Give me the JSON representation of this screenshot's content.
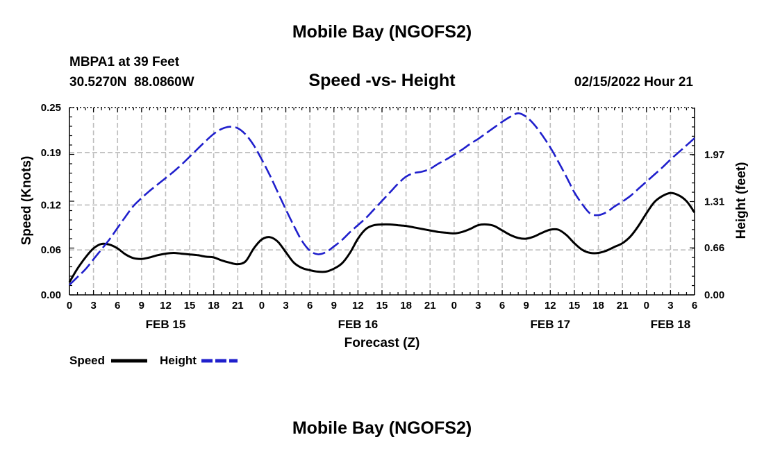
{
  "page": {
    "title": "Mobile Bay (NGOFS2)",
    "footer_title": "Mobile Bay (NGOFS2)"
  },
  "chart_data": {
    "type": "line",
    "title": "Speed -vs- Height",
    "station": "MBPA1 at 39 Feet",
    "location": "30.5270N  88.0860W",
    "timestamp": "02/15/2022 Hour 21",
    "xlabel": "Forecast (Z)",
    "ylabel_left": "Speed (Knots)",
    "ylabel_right": "Height (feet)",
    "x_unit": "hours from FEB 15 00Z",
    "xlim": [
      0,
      78
    ],
    "x_ticks": [
      0,
      3,
      6,
      9,
      12,
      15,
      18,
      21,
      24,
      27,
      30,
      33,
      36,
      39,
      42,
      45,
      48,
      51,
      54,
      57,
      60,
      63,
      66,
      69,
      72,
      75,
      78
    ],
    "x_tick_labels": [
      "0",
      "3",
      "6",
      "9",
      "12",
      "15",
      "18",
      "21",
      "0",
      "3",
      "6",
      "9",
      "12",
      "15",
      "18",
      "21",
      "0",
      "3",
      "6",
      "9",
      "12",
      "15",
      "18",
      "21",
      "0",
      "3",
      "6"
    ],
    "date_labels": [
      {
        "x": 12,
        "text": "FEB 15"
      },
      {
        "x": 36,
        "text": "FEB 16"
      },
      {
        "x": 60,
        "text": "FEB 17"
      },
      {
        "x": 75,
        "text": "FEB 18"
      }
    ],
    "ylim_left": [
      0,
      0.25
    ],
    "yticks_left": [
      "0.00",
      "0.06",
      "0.12",
      "0.19",
      "0.25"
    ],
    "ylim_right": [
      0,
      2.63
    ],
    "yticks_right": [
      "0.00",
      "0.66",
      "1.31",
      "1.97"
    ],
    "grid": true,
    "legend_position": "bottom-left",
    "series": [
      {
        "name": "Speed",
        "axis": "left",
        "color": "#000000",
        "style": "solid",
        "x": [
          0,
          1,
          2,
          3,
          4,
          5,
          6,
          7,
          8,
          9,
          10,
          11,
          12,
          13,
          14,
          15,
          16,
          17,
          18,
          19,
          20,
          21,
          22,
          23,
          24,
          25,
          26,
          27,
          28,
          29,
          30,
          31,
          32,
          33,
          34,
          35,
          36,
          37,
          38,
          39,
          40,
          41,
          42,
          43,
          44,
          45,
          46,
          47,
          48,
          49,
          50,
          51,
          52,
          53,
          54,
          55,
          56,
          57,
          58,
          59,
          60,
          61,
          62,
          63,
          64,
          65,
          66,
          67,
          68,
          69,
          70,
          71,
          72,
          73,
          74,
          75,
          76,
          77,
          78
        ],
        "values": [
          0.017,
          0.035,
          0.05,
          0.062,
          0.068,
          0.067,
          0.062,
          0.054,
          0.049,
          0.048,
          0.05,
          0.053,
          0.055,
          0.056,
          0.055,
          0.054,
          0.053,
          0.051,
          0.05,
          0.046,
          0.043,
          0.041,
          0.045,
          0.062,
          0.074,
          0.077,
          0.071,
          0.057,
          0.043,
          0.036,
          0.033,
          0.031,
          0.031,
          0.035,
          0.042,
          0.056,
          0.075,
          0.088,
          0.093,
          0.094,
          0.094,
          0.093,
          0.092,
          0.09,
          0.088,
          0.086,
          0.084,
          0.083,
          0.082,
          0.084,
          0.088,
          0.093,
          0.094,
          0.092,
          0.086,
          0.08,
          0.076,
          0.075,
          0.078,
          0.083,
          0.087,
          0.087,
          0.08,
          0.069,
          0.06,
          0.056,
          0.056,
          0.059,
          0.064,
          0.069,
          0.078,
          0.092,
          0.109,
          0.124,
          0.132,
          0.136,
          0.133,
          0.125,
          0.11
        ]
      },
      {
        "name": "Height",
        "axis": "right",
        "color": "#1f1fcc",
        "style": "dashed",
        "x": [
          0,
          1,
          2,
          3,
          4,
          5,
          6,
          7,
          8,
          9,
          10,
          11,
          12,
          13,
          14,
          15,
          16,
          17,
          18,
          19,
          20,
          21,
          22,
          23,
          24,
          25,
          26,
          27,
          28,
          29,
          30,
          31,
          32,
          33,
          34,
          35,
          36,
          37,
          38,
          39,
          40,
          41,
          42,
          43,
          44,
          45,
          46,
          47,
          48,
          49,
          50,
          51,
          52,
          53,
          54,
          55,
          56,
          57,
          58,
          59,
          60,
          61,
          62,
          63,
          64,
          65,
          66,
          67,
          68,
          69,
          70,
          71,
          72,
          73,
          74,
          75,
          76,
          77,
          78
        ],
        "values": [
          0.14,
          0.25,
          0.36,
          0.5,
          0.64,
          0.78,
          0.94,
          1.1,
          1.25,
          1.36,
          1.46,
          1.55,
          1.64,
          1.73,
          1.83,
          1.94,
          2.05,
          2.16,
          2.26,
          2.33,
          2.36,
          2.34,
          2.25,
          2.1,
          1.9,
          1.68,
          1.44,
          1.2,
          0.97,
          0.76,
          0.62,
          0.57,
          0.6,
          0.68,
          0.77,
          0.88,
          0.98,
          1.08,
          1.2,
          1.32,
          1.44,
          1.56,
          1.66,
          1.71,
          1.73,
          1.77,
          1.84,
          1.9,
          1.97,
          2.04,
          2.12,
          2.19,
          2.27,
          2.35,
          2.43,
          2.5,
          2.55,
          2.5,
          2.39,
          2.24,
          2.07,
          1.87,
          1.66,
          1.44,
          1.27,
          1.14,
          1.12,
          1.16,
          1.24,
          1.31,
          1.39,
          1.49,
          1.59,
          1.69,
          1.79,
          1.9,
          2.0,
          2.1,
          2.2
        ]
      }
    ]
  }
}
